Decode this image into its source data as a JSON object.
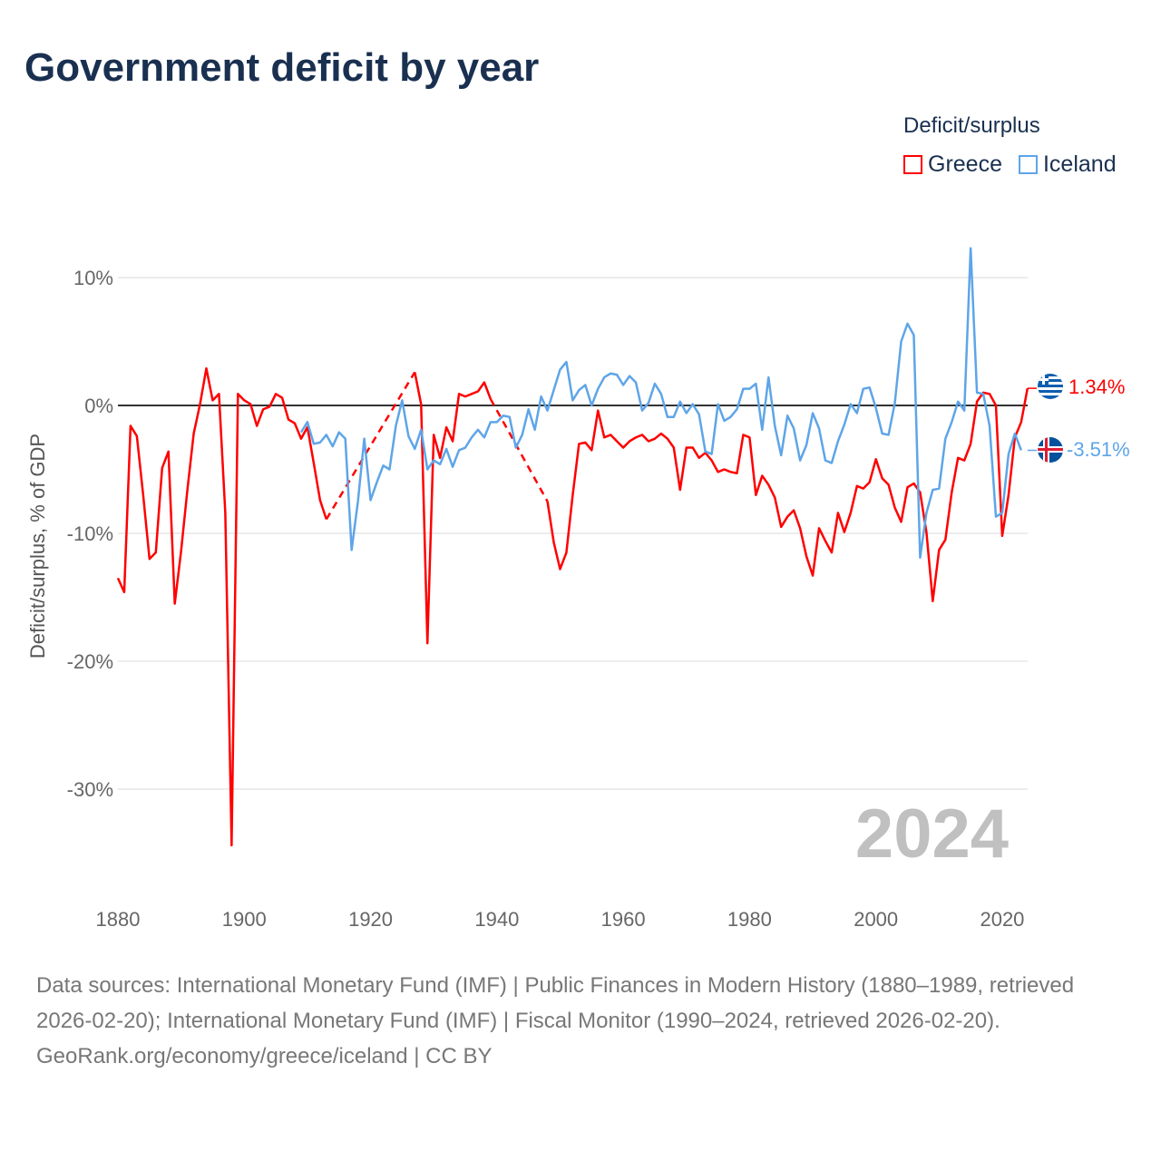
{
  "title": "Government deficit by year",
  "legend": {
    "title": "Deficit/surplus",
    "items": [
      {
        "name": "Greece",
        "color": "#ff0000"
      },
      {
        "name": "Iceland",
        "color": "#5ea5e8"
      }
    ]
  },
  "chart_data": {
    "type": "line",
    "title": "Government deficit by year",
    "xlabel": "",
    "ylabel": "Deficit/surplus, % of GDP",
    "xlim": [
      1880,
      2024
    ],
    "ylim": [
      -36,
      13
    ],
    "x_ticks": [
      1880,
      1900,
      1920,
      1940,
      1960,
      1980,
      2000,
      2020
    ],
    "x_tick_labels": [
      "1880",
      "1900",
      "1920",
      "1940",
      "1960",
      "1980",
      "2000",
      "2020"
    ],
    "y_ticks": [
      10,
      0,
      -10,
      -20,
      -30
    ],
    "y_tick_labels": [
      "10%",
      "0%",
      "-10%",
      "-20%",
      "-30%"
    ],
    "grid": true,
    "legend_position": "top-right",
    "year_label": "2024",
    "series": [
      {
        "name": "Greece",
        "color": "#ff0000",
        "start_year": 1880,
        "end_label": "1.34%",
        "flag": "greece-flag",
        "values": [
          -13.5,
          -14.6,
          -1.6,
          -2.4,
          -7.0,
          -12.0,
          -11.5,
          -4.9,
          -3.6,
          -15.5,
          -11.4,
          -6.6,
          -2.2,
          0.1,
          2.9,
          0.4,
          0.9,
          -8.4,
          -34.4,
          0.9,
          0.4,
          0.1,
          -1.6,
          -0.3,
          -0.1,
          0.9,
          0.6,
          -1.1,
          -1.4,
          -2.6,
          -1.7,
          -4.5,
          -7.4,
          -8.9,
          null,
          null,
          null,
          null,
          null,
          null,
          null,
          null,
          null,
          null,
          null,
          null,
          null,
          2.6,
          0.1,
          -18.6,
          -2.3,
          -4.1,
          -1.7,
          -2.8,
          0.9,
          0.7,
          0.9,
          1.1,
          1.8,
          0.5,
          null,
          null,
          null,
          null,
          null,
          null,
          null,
          null,
          -7.5,
          -10.7,
          -12.8,
          -11.5,
          -7.0,
          -3.0,
          -2.9,
          -3.5,
          -0.4,
          -2.5,
          -2.3,
          -2.8,
          -3.3,
          -2.8,
          -2.5,
          -2.3,
          -2.8,
          -2.6,
          -2.2,
          -2.6,
          -3.3,
          -6.6,
          -3.3,
          -3.3,
          -4.1,
          -3.7,
          -4.3,
          -5.2,
          -5.0,
          -5.2,
          -5.3,
          -2.3,
          -2.5,
          -7.0,
          -5.5,
          -6.2,
          -7.2,
          -9.5,
          -8.7,
          -8.2,
          -9.6,
          -11.8,
          -13.3,
          -9.6,
          -10.6,
          -11.5,
          -8.4,
          -9.9,
          -8.4,
          -6.3,
          -6.5,
          -6.0,
          -4.2,
          -5.7,
          -6.2,
          -8.0,
          -9.1,
          -6.4,
          -6.1,
          -6.8,
          -9.9,
          -15.3,
          -11.3,
          -10.5,
          -6.8,
          -4.1,
          -4.3,
          -3.0,
          0.3,
          1.0,
          0.9,
          0.0,
          -10.2,
          -7.0,
          -2.5,
          -1.3,
          1.34
        ]
      },
      {
        "name": "Iceland",
        "color": "#5ea5e8",
        "start_year": 1909,
        "end_label": "-3.51%",
        "flag": "iceland-flag",
        "values": [
          -2.1,
          -1.3,
          -3.0,
          -2.9,
          -2.3,
          -3.2,
          -2.1,
          -2.6,
          -11.3,
          -7.5,
          -2.6,
          -7.4,
          -6.0,
          -4.7,
          -5.0,
          -1.6,
          0.4,
          -2.4,
          -3.4,
          -1.9,
          -5.0,
          -4.3,
          -4.6,
          -3.4,
          -4.8,
          -3.5,
          -3.3,
          -2.5,
          -1.9,
          -2.5,
          -1.3,
          -1.3,
          -0.8,
          -0.9,
          -3.3,
          -2.3,
          -0.3,
          -1.9,
          0.7,
          -0.4,
          1.2,
          2.8,
          3.4,
          0.4,
          1.2,
          1.6,
          0.0,
          1.3,
          2.2,
          2.5,
          2.4,
          1.6,
          2.3,
          1.8,
          -0.4,
          0.2,
          1.7,
          0.9,
          -0.9,
          -0.9,
          0.3,
          -0.6,
          0.1,
          -0.7,
          -3.6,
          -3.8,
          0.1,
          -1.2,
          -0.9,
          -0.3,
          1.3,
          1.3,
          1.7,
          -1.9,
          2.2,
          -1.6,
          -3.9,
          -0.8,
          -1.8,
          -4.3,
          -3.1,
          -0.6,
          -1.8,
          -4.3,
          -4.5,
          -2.8,
          -1.5,
          0.1,
          -0.6,
          1.3,
          1.4,
          -0.2,
          -2.2,
          -2.3,
          0.2,
          5.0,
          6.4,
          5.5,
          -11.9,
          -8.4,
          -6.6,
          -6.5,
          -2.6,
          -1.3,
          0.3,
          -0.4,
          12.3,
          1.0,
          0.9,
          -1.6,
          -8.7,
          -8.4,
          -3.8,
          -2.2,
          -3.51
        ]
      }
    ]
  },
  "footer": {
    "sources": "Data sources: International Monetary Fund (IMF) | Public Finances in Modern History (1880–1989, retrieved 2026-02-20); International Monetary Fund (IMF) | Fiscal Monitor (1990–2024, retrieved 2026-02-20).",
    "credit": "GeoRank.org/economy/greece/iceland | CC BY"
  }
}
